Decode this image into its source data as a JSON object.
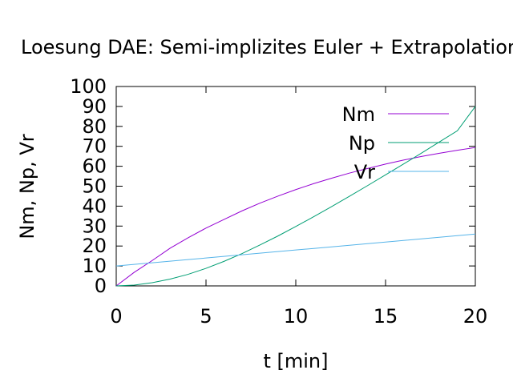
{
  "chart_data": {
    "type": "line",
    "title": "Loesung DAE: Semi-implizites Euler + Extrapolation",
    "xlabel": "t [min]",
    "ylabel": "Nm, Np, Vr",
    "xlim": [
      0,
      20
    ],
    "ylim": [
      0,
      100
    ],
    "x_ticks": [
      "0",
      "5",
      "10",
      "15",
      "20"
    ],
    "y_ticks": [
      "0",
      "10",
      "20",
      "30",
      "40",
      "50",
      "60",
      "70",
      "80",
      "90",
      "100"
    ],
    "grid": false,
    "legend_position": "top-right",
    "x": [
      0,
      1,
      2,
      3,
      4,
      5,
      6,
      7,
      8,
      9,
      10,
      11,
      12,
      13,
      14,
      15,
      16,
      17,
      18,
      19,
      20
    ],
    "series": [
      {
        "name": "Nm",
        "color": "#9400d3",
        "values": [
          0,
          6.8,
          12.7,
          18.9,
          24.1,
          29.0,
          33.3,
          37.6,
          41.5,
          45.0,
          48.3,
          51.3,
          54.0,
          56.6,
          58.9,
          61.1,
          63.1,
          64.9,
          66.5,
          68.0,
          69.4
        ]
      },
      {
        "name": "Np",
        "color": "#009e73",
        "values": [
          0,
          0.4,
          1.6,
          3.4,
          5.8,
          8.8,
          12.3,
          16.2,
          20.5,
          25.0,
          29.8,
          34.7,
          39.8,
          45.0,
          50.3,
          55.7,
          61.1,
          66.6,
          72.2,
          77.8,
          90.0
        ]
      },
      {
        "name": "Vr",
        "color": "#56b4e9",
        "values": [
          10.0,
          10.8,
          11.6,
          12.4,
          13.2,
          14.0,
          14.8,
          15.6,
          16.4,
          17.2,
          18.0,
          18.8,
          19.6,
          20.4,
          21.2,
          22.0,
          22.8,
          23.6,
          24.4,
          25.2,
          26.0
        ]
      }
    ]
  }
}
